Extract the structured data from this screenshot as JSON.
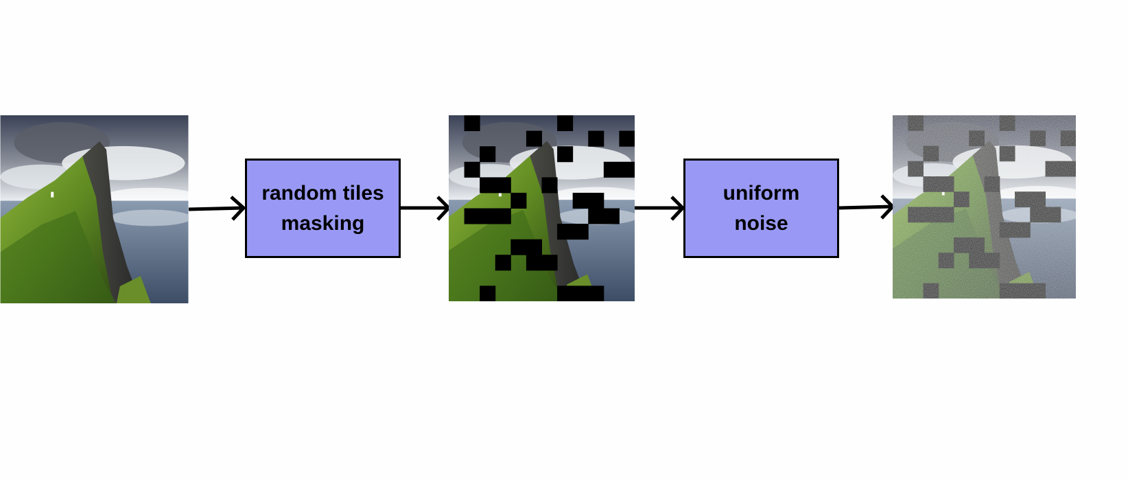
{
  "diagram": {
    "title": "",
    "steps": [
      {
        "id": "original",
        "kind": "image",
        "description_name": "original-landscape-image"
      },
      {
        "id": "masking",
        "kind": "process",
        "label": "random tiles\nmasking"
      },
      {
        "id": "masked",
        "kind": "image",
        "description_name": "masked-landscape-image"
      },
      {
        "id": "noise",
        "kind": "process",
        "label": "uniform\nnoise"
      },
      {
        "id": "noisy",
        "kind": "image",
        "description_name": "noisy-masked-landscape-image"
      }
    ],
    "colors": {
      "process_fill": "#9999f5",
      "arrow": "#000000",
      "mask_tile": "#000000",
      "noisy_tile": "#222222"
    }
  }
}
